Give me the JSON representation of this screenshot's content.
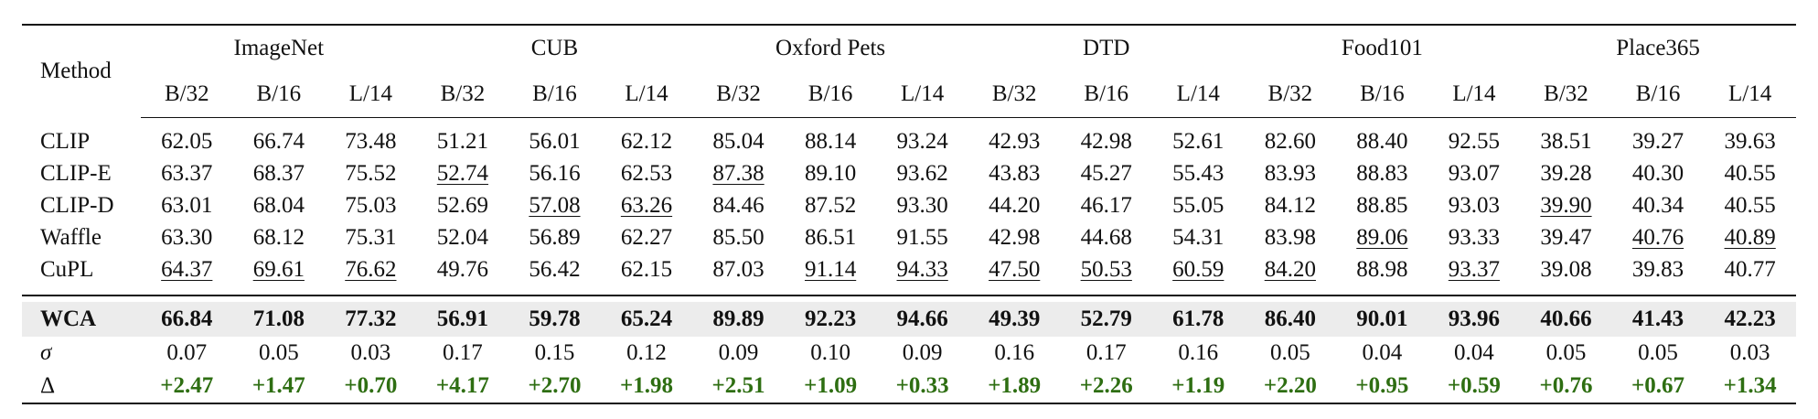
{
  "table": {
    "method_header": "Method",
    "datasets": [
      "ImageNet",
      "CUB",
      "Oxford Pets",
      "DTD",
      "Food101",
      "Place365"
    ],
    "backbones": [
      "B/32",
      "B/16",
      "L/14"
    ],
    "rows": [
      {
        "name": "CLIP",
        "values": [
          "62.05",
          "66.74",
          "73.48",
          "51.21",
          "56.01",
          "62.12",
          "85.04",
          "88.14",
          "93.24",
          "42.93",
          "42.98",
          "52.61",
          "82.60",
          "88.40",
          "92.55",
          "38.51",
          "39.27",
          "39.63"
        ],
        "underline": []
      },
      {
        "name": "CLIP-E",
        "values": [
          "63.37",
          "68.37",
          "75.52",
          "52.74",
          "56.16",
          "62.53",
          "87.38",
          "89.10",
          "93.62",
          "43.83",
          "45.27",
          "55.43",
          "83.93",
          "88.83",
          "93.07",
          "39.28",
          "40.30",
          "40.55"
        ],
        "underline": [
          3,
          6
        ]
      },
      {
        "name": "CLIP-D",
        "values": [
          "63.01",
          "68.04",
          "75.03",
          "52.69",
          "57.08",
          "63.26",
          "84.46",
          "87.52",
          "93.30",
          "44.20",
          "46.17",
          "55.05",
          "84.12",
          "88.85",
          "93.03",
          "39.90",
          "40.34",
          "40.55"
        ],
        "underline": [
          4,
          5,
          15
        ]
      },
      {
        "name": "Waffle",
        "values": [
          "63.30",
          "68.12",
          "75.31",
          "52.04",
          "56.89",
          "62.27",
          "85.50",
          "86.51",
          "91.55",
          "42.98",
          "44.68",
          "54.31",
          "83.98",
          "89.06",
          "93.33",
          "39.47",
          "40.76",
          "40.89"
        ],
        "underline": [
          13,
          16,
          17
        ]
      },
      {
        "name": "CuPL",
        "values": [
          "64.37",
          "69.61",
          "76.62",
          "49.76",
          "56.42",
          "62.15",
          "87.03",
          "91.14",
          "94.33",
          "47.50",
          "50.53",
          "60.59",
          "84.20",
          "88.98",
          "93.37",
          "39.08",
          "39.83",
          "40.77"
        ],
        "underline": [
          0,
          1,
          2,
          7,
          8,
          9,
          10,
          11,
          12,
          14
        ]
      }
    ],
    "wca": {
      "name": "WCA",
      "values": [
        "66.84",
        "71.08",
        "77.32",
        "56.91",
        "59.78",
        "65.24",
        "89.89",
        "92.23",
        "94.66",
        "49.39",
        "52.79",
        "61.78",
        "86.40",
        "90.01",
        "93.96",
        "40.66",
        "41.43",
        "42.23"
      ]
    },
    "sigma": {
      "name": "σ",
      "values": [
        "0.07",
        "0.05",
        "0.03",
        "0.17",
        "0.15",
        "0.12",
        "0.09",
        "0.10",
        "0.09",
        "0.16",
        "0.17",
        "0.16",
        "0.05",
        "0.04",
        "0.04",
        "0.05",
        "0.05",
        "0.03"
      ]
    },
    "delta": {
      "name": "Δ",
      "values": [
        "+2.47",
        "+1.47",
        "+0.70",
        "+4.17",
        "+2.70",
        "+1.98",
        "+2.51",
        "+1.09",
        "+0.33",
        "+1.89",
        "+2.26",
        "+1.19",
        "+2.20",
        "+0.95",
        "+0.59",
        "+0.76",
        "+0.67",
        "+1.34"
      ]
    }
  },
  "colors": {
    "delta_text": "#2e6e12",
    "wca_highlight": "#ececec"
  }
}
